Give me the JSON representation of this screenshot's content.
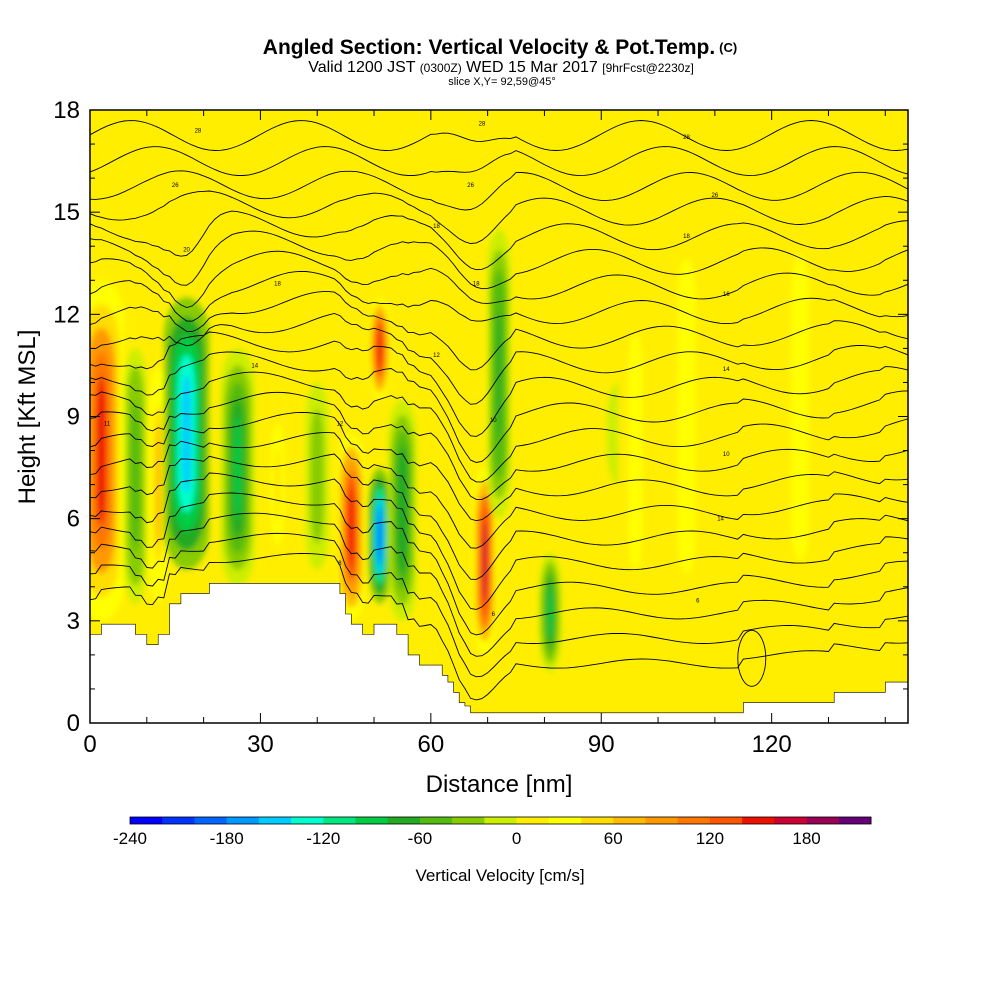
{
  "header": {
    "title": "Angled Section: Vertical Velocity & Pot.Temp.",
    "title_suffix": "(C)",
    "valid_prefix": "Valid 1200 JST",
    "valid_zulu": "(0300Z)",
    "valid_date": "WED 15 Mar 2017",
    "valid_fcst": "[9hrFcst@2230z]",
    "slice": "slice X,Y= 92,59@45°"
  },
  "chart_data": {
    "type": "heatmap",
    "xlabel": "Distance [nm]",
    "ylabel": "Height [Kft MSL]",
    "xlim": [
      0,
      144
    ],
    "ylim": [
      0,
      18
    ],
    "x_ticks": [
      0,
      30,
      60,
      90,
      120
    ],
    "y_ticks": [
      0,
      3,
      6,
      9,
      12,
      15,
      18
    ],
    "grid": false,
    "background_level": 0,
    "velocity_features": [
      {
        "x": 2,
        "y_low": 3,
        "y_high": 13,
        "half_width": 4,
        "value": 140
      },
      {
        "x": 8,
        "y_low": 3.5,
        "y_high": 11,
        "half_width": 2,
        "value": -60
      },
      {
        "x": 12,
        "y_low": 3,
        "y_high": 11,
        "half_width": 2,
        "value": 60
      },
      {
        "x": 17,
        "y_low": 4.5,
        "y_high": 12.5,
        "half_width": 4,
        "value": -160
      },
      {
        "x": 26,
        "y_low": 4,
        "y_high": 11,
        "half_width": 3,
        "value": -90
      },
      {
        "x": 33,
        "y_low": 4.5,
        "y_high": 9.5,
        "half_width": 2,
        "value": 40
      },
      {
        "x": 40,
        "y_low": 4.5,
        "y_high": 10,
        "half_width": 2,
        "value": -40
      },
      {
        "x": 46,
        "y_low": 3,
        "y_high": 8.5,
        "half_width": 2.5,
        "value": 150
      },
      {
        "x": 51,
        "y_low": 9.5,
        "y_high": 12.5,
        "half_width": 2,
        "value": 150
      },
      {
        "x": 51,
        "y_low": 3.5,
        "y_high": 7.5,
        "half_width": 2,
        "value": -200
      },
      {
        "x": 55,
        "y_low": 3,
        "y_high": 9.5,
        "half_width": 2.5,
        "value": -80
      },
      {
        "x": 69.5,
        "y_low": 2,
        "y_high": 7.5,
        "half_width": 2,
        "value": 170
      },
      {
        "x": 72,
        "y_low": 6,
        "y_high": 14.5,
        "half_width": 2,
        "value": -70
      },
      {
        "x": 81,
        "y_low": 1.5,
        "y_high": 5,
        "half_width": 2,
        "value": -90
      },
      {
        "x": 93,
        "y_low": 7,
        "y_high": 10,
        "half_width": 2,
        "value": -20
      },
      {
        "x": 96,
        "y_low": 2,
        "y_high": 14,
        "half_width": 3,
        "value": 30
      },
      {
        "x": 105,
        "y_low": 1,
        "y_high": 17,
        "half_width": 4,
        "value": 30
      },
      {
        "x": 125,
        "y_low": 1.5,
        "y_high": 17,
        "half_width": 4,
        "value": 25
      }
    ],
    "theta_contour_labels": [
      {
        "x": 19,
        "y": 17.4,
        "value": "28"
      },
      {
        "x": 15,
        "y": 15.8,
        "value": "26"
      },
      {
        "x": 17,
        "y": 13.9,
        "value": "20"
      },
      {
        "x": 33,
        "y": 12.9,
        "value": "18"
      },
      {
        "x": 61,
        "y": 14.6,
        "value": "18"
      },
      {
        "x": 68,
        "y": 12.9,
        "value": "18"
      },
      {
        "x": 29,
        "y": 10.5,
        "value": "14"
      },
      {
        "x": 61,
        "y": 10.8,
        "value": "12"
      },
      {
        "x": 3,
        "y": 8.8,
        "value": "11"
      },
      {
        "x": 44,
        "y": 8.8,
        "value": "12"
      },
      {
        "x": 71,
        "y": 8.9,
        "value": "10"
      },
      {
        "x": 44,
        "y": 4.7,
        "value": "8"
      },
      {
        "x": 71,
        "y": 3.2,
        "value": "6"
      },
      {
        "x": 69,
        "y": 17.6,
        "value": "28"
      },
      {
        "x": 67,
        "y": 15.8,
        "value": "26"
      },
      {
        "x": 105,
        "y": 17.2,
        "value": "28"
      },
      {
        "x": 110,
        "y": 15.5,
        "value": "26"
      },
      {
        "x": 105,
        "y": 14.3,
        "value": "18"
      },
      {
        "x": 112,
        "y": 12.6,
        "value": "16"
      },
      {
        "x": 112,
        "y": 10.4,
        "value": "14"
      },
      {
        "x": 112,
        "y": 7.9,
        "value": "10"
      },
      {
        "x": 111,
        "y": 6,
        "value": "14"
      },
      {
        "x": 107,
        "y": 3.6,
        "value": "6"
      }
    ],
    "terrain_kft": {
      "x": [
        0,
        1,
        2,
        3,
        4,
        5,
        6,
        7,
        8,
        9,
        10,
        11,
        12,
        13,
        14,
        15,
        16,
        17,
        18,
        19,
        20,
        21,
        22,
        23,
        24,
        25,
        26,
        27,
        28,
        29,
        30,
        31,
        32,
        33,
        34,
        35,
        36,
        37,
        38,
        39,
        40,
        41,
        42,
        43,
        44,
        45,
        46,
        47,
        48,
        49,
        50,
        51,
        52,
        53,
        54,
        55,
        56,
        57,
        58,
        59,
        60,
        61,
        62,
        63,
        64,
        65,
        66,
        67,
        68,
        69,
        70,
        71,
        72,
        73,
        74,
        75,
        76,
        77,
        78,
        79,
        80,
        81,
        82,
        83,
        84,
        85,
        86,
        87,
        88,
        89,
        90,
        91,
        92,
        93,
        94,
        95,
        96,
        97,
        98,
        99,
        100,
        101,
        102,
        103,
        104,
        105,
        106,
        107,
        108,
        109,
        110,
        111,
        112,
        113,
        114,
        115,
        116,
        117,
        118,
        119,
        120,
        121,
        122,
        123,
        124,
        125,
        126,
        127,
        128,
        129,
        130,
        131,
        132,
        133,
        134,
        135,
        136,
        137,
        138,
        139,
        140,
        141,
        142,
        143,
        144
      ],
      "h": [
        2.6,
        2.6,
        2.9,
        2.9,
        2.9,
        2.9,
        2.9,
        2.9,
        2.6,
        2.6,
        2.3,
        2.3,
        2.6,
        2.6,
        3.5,
        3.5,
        3.8,
        3.8,
        3.8,
        3.8,
        3.8,
        4.1,
        4.1,
        4.1,
        4.1,
        4.1,
        4.1,
        4.1,
        4.1,
        4.1,
        4.1,
        4.1,
        4.1,
        4.1,
        4.1,
        4.1,
        4.1,
        4.1,
        4.1,
        4.1,
        4.1,
        4.1,
        4.1,
        4.1,
        3.8,
        3.2,
        2.9,
        2.9,
        2.6,
        2.6,
        2.9,
        2.9,
        2.9,
        2.9,
        2.6,
        2.6,
        2.0,
        2.0,
        1.7,
        1.7,
        1.7,
        1.7,
        1.4,
        1.2,
        0.9,
        0.6,
        0.5,
        0.3,
        0.3,
        0.3,
        0.3,
        0.3,
        0.3,
        0.3,
        0.3,
        0.3,
        0.3,
        0.3,
        0.3,
        0.3,
        0.3,
        0.3,
        0.3,
        0.3,
        0.3,
        0.3,
        0.3,
        0.3,
        0.3,
        0.3,
        0.3,
        0.3,
        0.3,
        0.3,
        0.3,
        0.3,
        0.3,
        0.3,
        0.3,
        0.3,
        0.3,
        0.3,
        0.3,
        0.3,
        0.3,
        0.3,
        0.3,
        0.3,
        0.3,
        0.3,
        0.3,
        0.3,
        0.3,
        0.3,
        0.3,
        0.6,
        0.6,
        0.6,
        0.6,
        0.6,
        0.6,
        0.6,
        0.6,
        0.6,
        0.6,
        0.6,
        0.6,
        0.6,
        0.6,
        0.6,
        0.6,
        0.9,
        0.9,
        0.9,
        0.9,
        0.9,
        0.9,
        0.9,
        0.9,
        0.9,
        1.2,
        1.2,
        1.2,
        1.2,
        1.2
      ]
    },
    "colorbar": {
      "label": "Vertical Velocity [cm/s]",
      "tick_labels": [
        "-240",
        "-180",
        "-120",
        "-60",
        "0",
        "60",
        "120",
        "180"
      ],
      "tick_values": [
        -240,
        -180,
        -120,
        -60,
        0,
        60,
        120,
        180
      ],
      "levels": [
        -240,
        -220,
        -200,
        -180,
        -160,
        -140,
        -120,
        -100,
        -80,
        -60,
        -40,
        -20,
        0,
        20,
        40,
        60,
        80,
        100,
        120,
        140,
        160,
        180,
        200
      ],
      "colors": [
        "#0000ff",
        "#0033ff",
        "#0066ff",
        "#0099ff",
        "#00ccff",
        "#00ffcc",
        "#00e680",
        "#00cc44",
        "#22aa22",
        "#55bb11",
        "#88cc00",
        "#ccee00",
        "#ffee00",
        "#ffff00",
        "#ffdd00",
        "#ffbb00",
        "#ff9900",
        "#ff7700",
        "#ff5500",
        "#ee1100",
        "#cc0033",
        "#990055",
        "#660077"
      ]
    }
  }
}
